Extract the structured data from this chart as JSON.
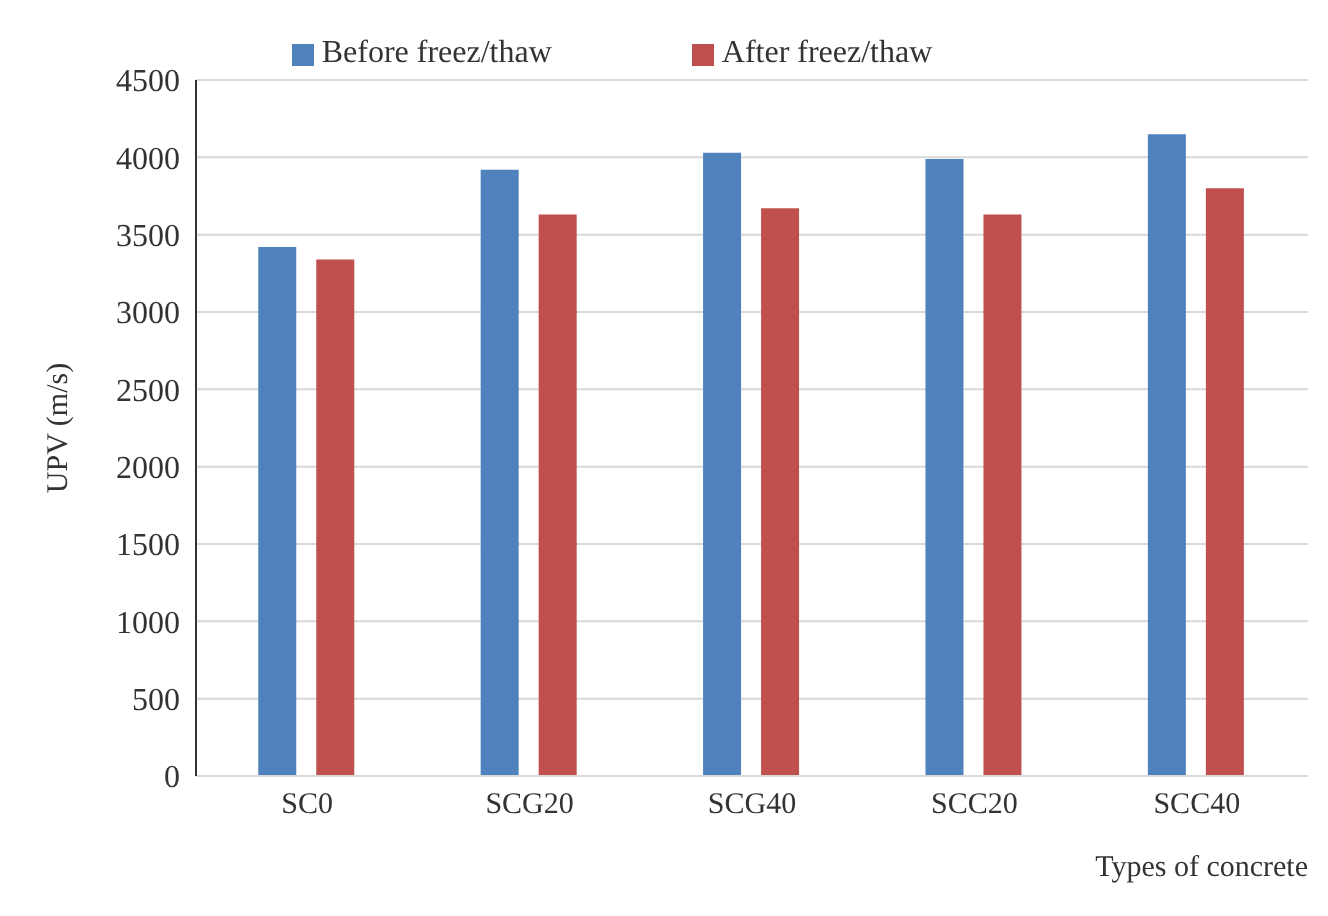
{
  "chart_data": {
    "type": "bar",
    "xlabel": "Types of concrete",
    "ylabel": "UPV (m/s)",
    "categories": [
      "SC0",
      "SCG20",
      "SCG40",
      "SCC20",
      "SCC40"
    ],
    "series": [
      {
        "name": "Before freez/thaw",
        "color": "#4f81bd",
        "values": [
          3420,
          3920,
          4030,
          3990,
          4150
        ]
      },
      {
        "name": "After freez/thaw",
        "color": "#c0504d",
        "values": [
          3340,
          3630,
          3670,
          3630,
          3800
        ]
      }
    ],
    "ylim": [
      0,
      4500
    ],
    "yticks": [
      0,
      500,
      1000,
      1500,
      2000,
      2500,
      3000,
      3500,
      4000,
      4500
    ],
    "grid": "y",
    "legend": "top"
  }
}
